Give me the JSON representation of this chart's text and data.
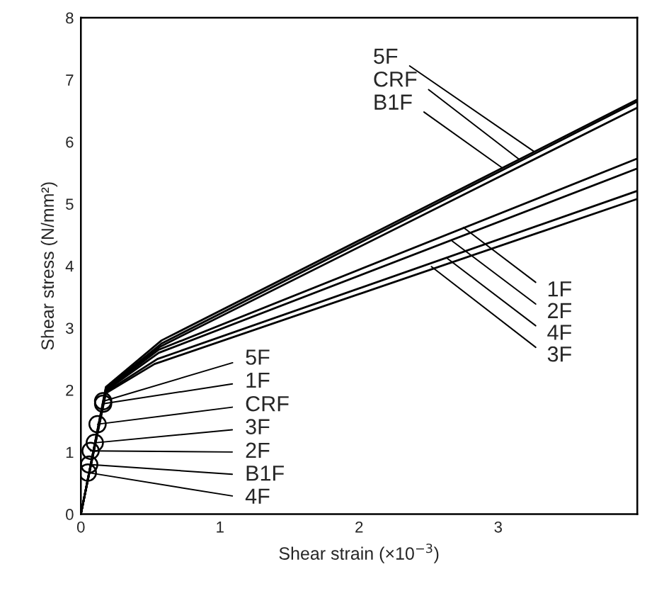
{
  "chart_data": {
    "type": "line",
    "xlabel": "Shear strain (×10$^{−3}$)",
    "ylabel": "Shear stress (N/mm²)",
    "xlim": [
      0,
      4
    ],
    "xticks": [
      0,
      1,
      2,
      3
    ],
    "ylim": [
      0,
      8
    ],
    "yticks": [
      0,
      1,
      2,
      3,
      4,
      5,
      6,
      7,
      8
    ],
    "grid": false,
    "legend": false,
    "line_style": "solid",
    "series": [
      {
        "color": "#000000",
        "marker": "none",
        "x": [
          0,
          0.18,
          0.58,
          4
        ],
        "values": [
          0,
          2.05,
          2.8,
          6.68
        ]
      },
      {
        "color": "#000000",
        "marker": "none",
        "x": [
          0,
          0.18,
          0.58,
          4
        ],
        "values": [
          0,
          2.03,
          2.75,
          6.65
        ]
      },
      {
        "color": "#000000",
        "marker": "none",
        "x": [
          0,
          0.18,
          0.57,
          4
        ],
        "values": [
          0,
          2.02,
          2.7,
          6.55
        ]
      },
      {
        "color": "#000000",
        "marker": "none",
        "x": [
          0,
          0.18,
          0.56,
          4
        ],
        "values": [
          0,
          2.0,
          2.65,
          5.73
        ]
      },
      {
        "color": "#000000",
        "marker": "none",
        "x": [
          0,
          0.18,
          0.56,
          4
        ],
        "values": [
          0,
          1.99,
          2.6,
          5.57
        ]
      },
      {
        "color": "#000000",
        "marker": "none",
        "x": [
          0,
          0.18,
          0.55,
          4
        ],
        "values": [
          0,
          1.97,
          2.5,
          5.21
        ]
      },
      {
        "color": "#000000",
        "marker": "none",
        "x": [
          0,
          0.18,
          0.53,
          4
        ],
        "values": [
          0,
          1.95,
          2.42,
          5.08
        ]
      },
      {
        "type": "scatter",
        "color": "#000000",
        "marker": "circle",
        "x": [
          0.16,
          0.16,
          0.12,
          0.1,
          0.07,
          0.06,
          0.05
        ],
        "values": [
          1.82,
          1.78,
          1.45,
          1.15,
          1.02,
          0.8,
          0.67
        ]
      }
    ],
    "annotations": [
      {
        "text": "5F",
        "x": 3.26,
        "y": 5.84
      },
      {
        "text": "CRF",
        "x": 3.15,
        "y": 5.72
      },
      {
        "text": "B1F",
        "x": 3.03,
        "y": 5.58
      },
      {
        "text": "1F",
        "x": 2.75,
        "y": 4.62
      },
      {
        "text": "2F",
        "x": 2.67,
        "y": 4.4
      },
      {
        "text": "4F",
        "x": 2.63,
        "y": 4.13
      },
      {
        "text": "3F",
        "x": 2.52,
        "y": 3.99
      },
      {
        "text": "5F",
        "x": 0.16,
        "y": 1.82
      },
      {
        "text": "1F",
        "x": 0.16,
        "y": 1.78
      },
      {
        "text": "CRF",
        "x": 0.12,
        "y": 1.45
      },
      {
        "text": "3F",
        "x": 0.1,
        "y": 1.15
      },
      {
        "text": "2F",
        "x": 0.07,
        "y": 1.02
      },
      {
        "text": "B1F",
        "x": 0.06,
        "y": 0.8
      },
      {
        "text": "4F",
        "x": 0.05,
        "y": 0.67
      }
    ]
  }
}
